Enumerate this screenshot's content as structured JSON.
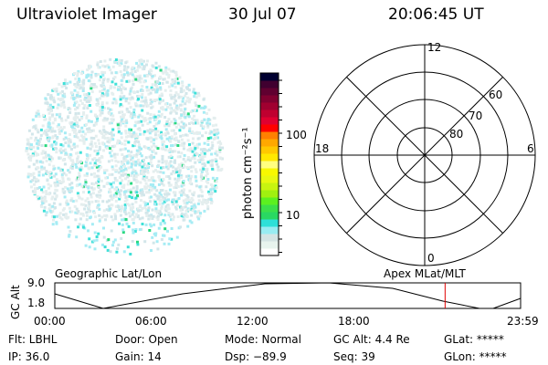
{
  "header": {
    "title": "Ultraviolet Imager",
    "date": "30 Jul 07",
    "time": "20:06:45 UT"
  },
  "colorbar": {
    "label": "photon cm⁻²s⁻¹",
    "ticks": [
      "100",
      "10"
    ],
    "colors": [
      "#ffffff",
      "#e8f4ee",
      "#d4e4e4",
      "#98ecf2",
      "#2ee0d8",
      "#2ad862",
      "#3ce04a",
      "#5cf020",
      "#a0f010",
      "#c8f410",
      "#e8f810",
      "#f8f800",
      "#ffff80",
      "#ffe800",
      "#ffc800",
      "#ffa800",
      "#ff8000",
      "#ff0000",
      "#e00030",
      "#c00030",
      "#a00030",
      "#800030",
      "#600030",
      "#400030",
      "#000030"
    ]
  },
  "polar": {
    "mlt_labels": {
      "top": "12",
      "left": "18",
      "right": "6",
      "bottom": "0"
    },
    "lat_labels": [
      "60",
      "70",
      "80"
    ]
  },
  "timeline": {
    "left_title": "Geographic Lat/Lon",
    "right_title": "Apex MLat/MLT",
    "ylabel": "GC Alt",
    "yticks": [
      "9.0",
      "1.8"
    ],
    "xticks": [
      "00:00",
      "06:00",
      "12:00",
      "18:00",
      "23:59"
    ],
    "current_marker_hours": 20.11
  },
  "status": {
    "flt": "Flt: LBHL",
    "ip": "IP: 36.0",
    "door": "Door: Open",
    "gain": "Gain: 14",
    "mode": "Mode: Normal",
    "dsp": "Dsp:  −89.9",
    "gcalt": "GC Alt: 4.4 Re",
    "seq": "Seq: 39",
    "glat": "GLat: *****",
    "glon": "GLon: *****"
  }
}
